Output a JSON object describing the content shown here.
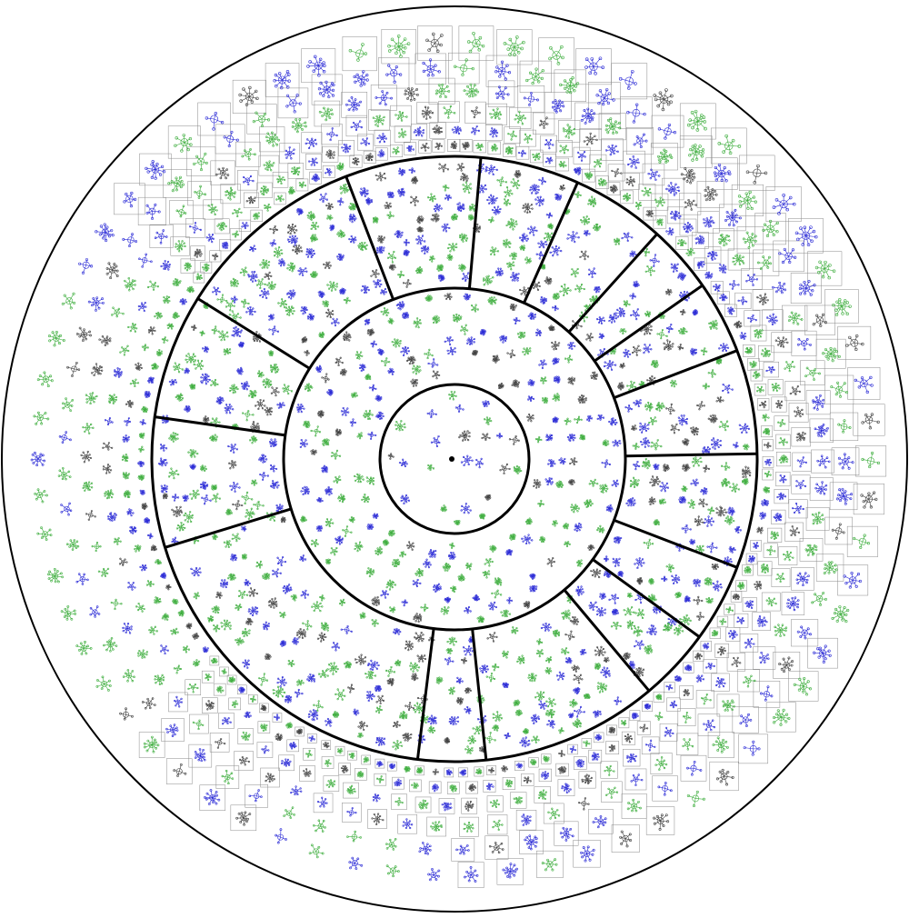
{
  "diagram": {
    "type": "radial-cluster-layout",
    "rings": [
      {
        "id": "core",
        "sectors": 1
      },
      {
        "id": "ring-2",
        "sectors": 1
      },
      {
        "id": "ring-3",
        "sectors": 12
      },
      {
        "id": "ring-4",
        "sectors": 1
      }
    ],
    "palette": {
      "boundary": "#000000",
      "box": "#8a8a8a",
      "cluster_blue": "#2b2bd6",
      "cluster_green": "#3fae3f",
      "cluster_dark": "#404040",
      "background": "#ffffff"
    },
    "cluster_colors": [
      "blue",
      "green",
      "dark"
    ]
  }
}
